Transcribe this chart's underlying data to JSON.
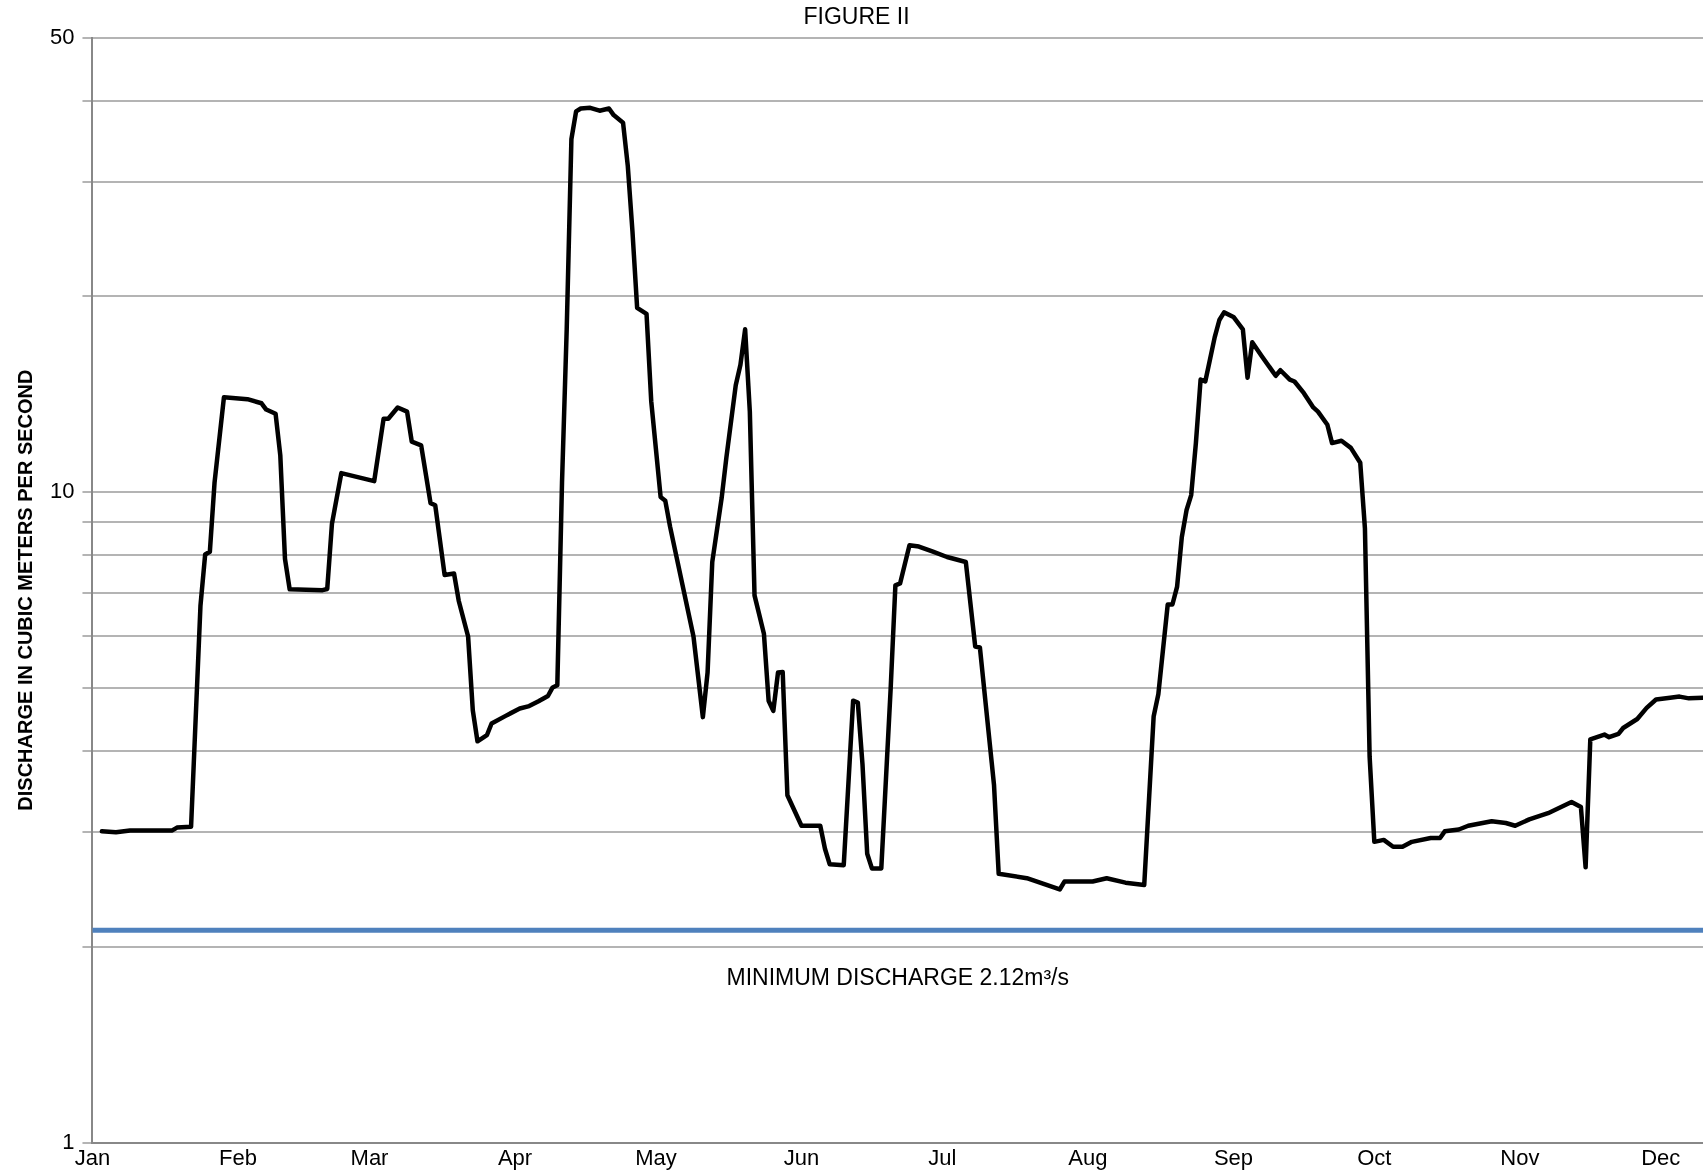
{
  "chart_data": {
    "type": "line",
    "title": "FIGURE II",
    "ylabel": "DISCHARGE IN CUBIC METERS PER SECOND",
    "log": "y",
    "grid": "y",
    "legend": false,
    "marker": "none",
    "line_style": "solid",
    "xlim": [
      "--01-01",
      "--12-10"
    ],
    "xticks": [
      {
        "value": "--01-01",
        "label": "Jan"
      },
      {
        "value": "--02-01",
        "label": "Feb"
      },
      {
        "value": "--03-01",
        "label": "Mar"
      },
      {
        "value": "--04-01",
        "label": "Apr"
      },
      {
        "value": "--05-01",
        "label": "May"
      },
      {
        "value": "--06-01",
        "label": "Jun"
      },
      {
        "value": "--07-01",
        "label": "Jul"
      },
      {
        "value": "--08-01",
        "label": "Aug"
      },
      {
        "value": "--09-01",
        "label": "Sep"
      },
      {
        "value": "--10-01",
        "label": "Oct"
      },
      {
        "value": "--11-01",
        "label": "Nov"
      },
      {
        "value": "--12-01",
        "label": "Dec"
      }
    ],
    "ylim": [
      1,
      50
    ],
    "yticks": [
      1,
      {
        "value": 2,
        "label": null
      },
      {
        "value": 3,
        "label": null
      },
      {
        "value": 4,
        "label": null
      },
      {
        "value": 5,
        "label": null
      },
      {
        "value": 6,
        "label": null
      },
      {
        "value": 7,
        "label": null
      },
      {
        "value": 8,
        "label": null
      },
      {
        "value": 9,
        "label": null
      },
      10,
      {
        "value": 20,
        "label": null
      },
      {
        "value": 30,
        "label": null
      },
      {
        "value": 40,
        "label": null
      },
      50
    ],
    "ref_lines": [
      {
        "axis": "y",
        "value": 2.12,
        "label": "MINIMUM DISCHARGE 2.12m³/s",
        "color": "#4f81bd"
      }
    ],
    "series": [
      {
        "color": "#000000",
        "x": [
          "--01-03",
          "--01-06",
          "--01-09",
          "--01-18",
          "--01-19",
          "--01-22",
          "--01-24",
          "--01-25",
          "--01-26",
          "--01-27",
          "--01-29",
          "--02-03",
          "--02-06",
          "--02-07",
          "--02-09",
          "--02-10",
          "--02-11",
          "--02-12",
          "--02-19",
          "--02-20",
          "--02-21",
          "--02-23",
          "--03-02",
          "--03-04",
          "--03-05",
          "--03-07",
          "--03-09",
          "--03-10",
          "--03-12",
          "--03-14",
          "--03-15",
          "--03-17",
          "--03-19",
          "--03-20",
          "--03-22",
          "--03-23",
          "--03-24",
          "--03-26",
          "--03-27",
          "--03-30",
          "--04-02",
          "--04-04",
          "--04-06",
          "--04-08",
          "--04-09",
          "--04-10",
          "--04-11",
          "--04-12",
          "--04-13",
          "--04-14",
          "--04-15",
          "--04-17",
          "--04-19",
          "--04-21",
          "--04-22",
          "--04-24",
          "--04-25",
          "--04-26",
          "--04-27",
          "--04-29",
          "--04-30",
          "--05-02",
          "--05-03",
          "--05-04",
          "--05-09",
          "--05-11",
          "--05-12",
          "--05-13",
          "--05-15",
          "--05-16",
          "--05-18",
          "--05-19",
          "--05-20",
          "--05-21",
          "--05-22",
          "--05-24",
          "--05-25",
          "--05-26",
          "--05-27",
          "--05-28",
          "--05-29",
          "--06-01",
          "--06-05",
          "--06-06",
          "--06-07",
          "--06-10",
          "--06-12",
          "--06-13",
          "--06-14",
          "--06-15",
          "--06-16",
          "--06-18",
          "--06-20",
          "--06-21",
          "--06-22",
          "--06-24",
          "--06-26",
          "--06-29",
          "--07-02",
          "--07-06",
          "--07-08",
          "--07-09",
          "--07-12",
          "--07-13",
          "--07-19",
          "--07-26",
          "--07-27",
          "--08-02",
          "--08-05",
          "--08-09",
          "--08-13",
          "--08-15",
          "--08-16",
          "--08-18",
          "--08-19",
          "--08-20",
          "--08-21",
          "--08-22",
          "--08-23",
          "--08-24",
          "--08-25",
          "--08-26",
          "--08-27",
          "--08-28",
          "--08-29",
          "--08-30",
          "--09-01",
          "--09-03",
          "--09-04",
          "--09-05",
          "--09-07",
          "--09-10",
          "--09-11",
          "--09-13",
          "--09-14",
          "--09-16",
          "--09-18",
          "--09-19",
          "--09-21",
          "--09-22",
          "--09-24",
          "--09-26",
          "--09-28",
          "--09-29",
          "--09-30",
          "--10-01",
          "--10-03",
          "--10-05",
          "--10-07",
          "--10-09",
          "--10-13",
          "--10-15",
          "--10-16",
          "--10-19",
          "--10-21",
          "--10-26",
          "--10-29",
          "--10-31",
          "--11-03",
          "--11-07",
          "--11-09",
          "--11-12",
          "--11-14",
          "--11-15",
          "--11-16",
          "--11-19",
          "--11-20",
          "--11-22",
          "--11-23",
          "--11-26",
          "--11-28",
          "--11-30",
          "--12-03",
          "--12-05",
          "--12-07",
          "--12-10"
        ],
        "values": [
          3.01,
          3.0,
          3.02,
          3.02,
          3.05,
          3.06,
          6.69,
          8.02,
          8.1,
          10.35,
          14.0,
          13.9,
          13.7,
          13.4,
          13.2,
          11.4,
          7.9,
          7.09,
          7.07,
          7.1,
          8.94,
          10.7,
          10.4,
          12.97,
          12.97,
          13.5,
          13.3,
          11.96,
          11.8,
          9.62,
          9.55,
          7.46,
          7.5,
          6.81,
          6.0,
          4.62,
          4.14,
          4.23,
          4.41,
          4.53,
          4.65,
          4.69,
          4.77,
          4.86,
          5.01,
          5.05,
          10.35,
          17.8,
          34.9,
          38.5,
          38.9,
          39.0,
          38.6,
          38.9,
          38.0,
          37.0,
          31.8,
          25.2,
          19.2,
          18.8,
          13.8,
          9.83,
          9.7,
          8.86,
          6.0,
          4.51,
          5.28,
          7.81,
          9.8,
          11.3,
          14.6,
          15.7,
          17.8,
          13.3,
          6.94,
          6.06,
          4.78,
          4.61,
          5.28,
          5.29,
          3.42,
          3.07,
          3.07,
          2.83,
          2.68,
          2.67,
          4.78,
          4.75,
          3.81,
          2.78,
          2.64,
          2.64,
          5.0,
          7.19,
          7.24,
          8.29,
          8.25,
          8.1,
          7.95,
          7.81,
          5.79,
          5.77,
          3.55,
          2.59,
          2.55,
          2.45,
          2.52,
          2.52,
          2.55,
          2.51,
          2.49,
          4.52,
          4.89,
          6.72,
          6.72,
          7.16,
          8.53,
          9.38,
          9.9,
          11.9,
          14.9,
          14.8,
          16.0,
          17.3,
          18.4,
          18.9,
          18.6,
          17.8,
          15.0,
          17.0,
          16.2,
          15.1,
          15.4,
          14.9,
          14.8,
          14.2,
          13.5,
          13.3,
          12.7,
          11.9,
          12.0,
          11.7,
          11.1,
          8.8,
          3.92,
          2.9,
          2.92,
          2.85,
          2.85,
          2.9,
          2.94,
          2.94,
          3.01,
          3.03,
          3.07,
          3.12,
          3.1,
          3.07,
          3.14,
          3.21,
          3.26,
          3.34,
          3.28,
          2.65,
          4.17,
          4.24,
          4.2,
          4.25,
          4.34,
          4.48,
          4.66,
          4.8,
          4.83,
          4.85,
          4.82,
          4.83
        ]
      }
    ]
  }
}
